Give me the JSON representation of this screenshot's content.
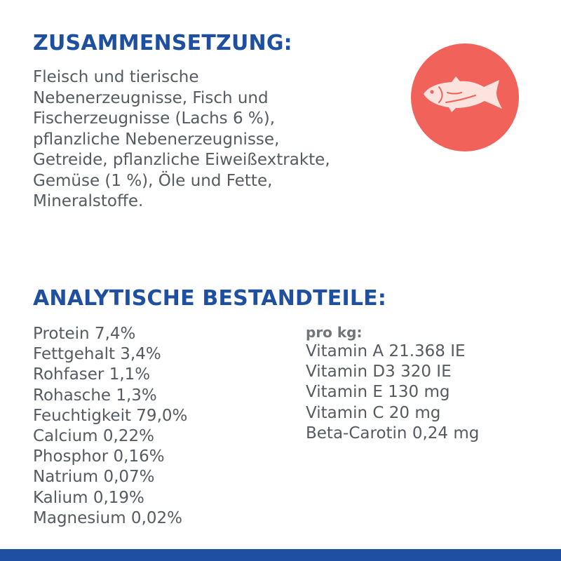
{
  "composition": {
    "heading": "ZUSAMMENSETZUNG:",
    "lines": [
      "Fleisch und tierische",
      "Nebenerzeugnisse, Fisch und",
      "Fischerzeugnisse (Lachs 6 %),",
      "pflanzliche Nebenerzeugnisse,",
      "Getreide, pflanzliche Eiweißextrakte,",
      "Gemüse (1 %), Öle und Fette,",
      "Mineralstoffe."
    ],
    "icon": "fish-icon",
    "badge_color": "#f1625a",
    "icon_color": "#fde3de"
  },
  "analytics": {
    "heading": "ANALYTISCHE BESTANDTEILE:",
    "items": [
      "Protein 7,4%",
      "Fettgehalt 3,4%",
      "Rohfaser 1,1%",
      "Rohasche 1,3%",
      "Feuchtigkeit 79,0%",
      "Calcium 0,22%",
      "Phosphor 0,16%",
      "Natrium 0,07%",
      "Kalium 0,19%",
      "Magnesium 0,02%"
    ],
    "per_kg_label": "pro kg:",
    "vitamins": [
      "Vitamin A 21.368 IE",
      "Vitamin D3 320 IE",
      "Vitamin E 130 mg",
      "Vitamin C 20 mg",
      "Beta-Carotin 0,24 mg"
    ]
  },
  "colors": {
    "heading": "#1f4fa0",
    "body_text": "#555b61",
    "footer_bar": "#1f4fa0"
  }
}
